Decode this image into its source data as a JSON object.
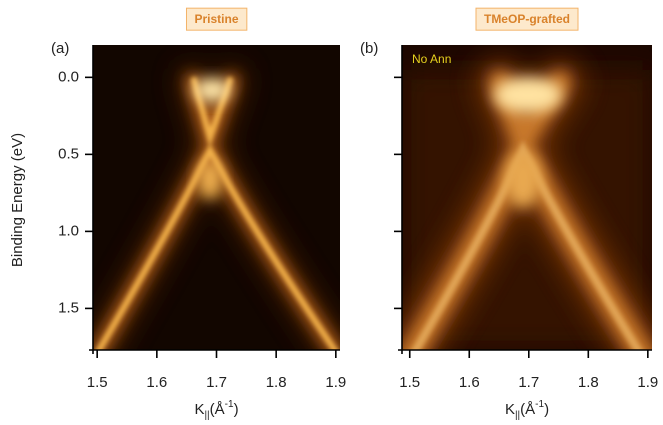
{
  "chart_data": [
    {
      "type": "image",
      "title": "Pristine",
      "panel_label": "(a)",
      "ylabel": "Binding Energy (eV)",
      "xlabel": [
        "K",
        "||",
        "(Å",
        "-1",
        ")"
      ],
      "xlim": [
        1.493,
        1.907
      ],
      "xticks": [
        1.5,
        1.6,
        1.7,
        1.8,
        1.9
      ],
      "ylim": [
        1.77,
        -0.21
      ],
      "yticks": [
        {
          "value": 0,
          "label": "0.0"
        },
        0.5,
        {
          "value": 1,
          "label": "1.0"
        },
        1.5
      ]
    },
    {
      "type": "image",
      "title": "TMeOP-grafted",
      "panel_label": "(b)",
      "annotation": "No Ann",
      "xlabel": [
        "K",
        "||",
        "(Å",
        "-1",
        ")"
      ],
      "xlim": [
        1.487,
        1.907
      ],
      "xticks": [
        1.5,
        1.6,
        1.7,
        1.8,
        1.9
      ],
      "ylim": [
        1.77,
        -0.21
      ],
      "yticks": [
        0,
        0.5,
        1,
        1.5
      ]
    }
  ]
}
